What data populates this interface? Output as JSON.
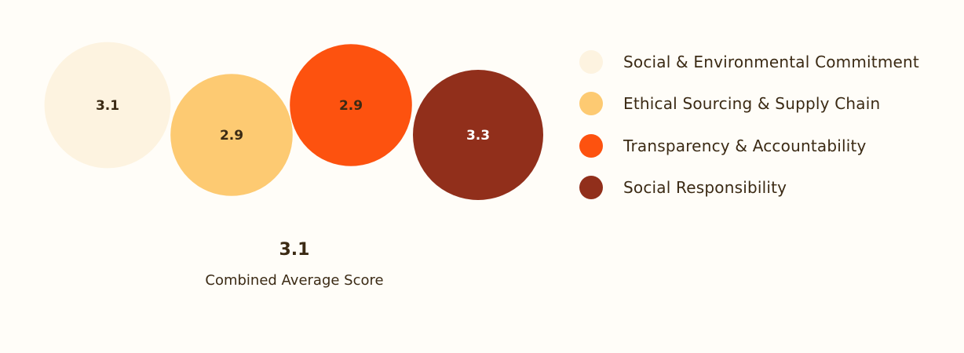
{
  "chart_data": {
    "type": "bubble",
    "title": "",
    "series": [
      {
        "name": "Social & Environmental Commitment",
        "value": 3.1,
        "color": "#fdf3e0",
        "label_color": "#3b2a14"
      },
      {
        "name": "Ethical Sourcing & Supply Chain",
        "value": 2.9,
        "color": "#fdca72",
        "label_color": "#3b2a14"
      },
      {
        "name": "Transparency & Accountability",
        "value": 2.9,
        "color": "#fd520f",
        "label_color": "#3b2a14"
      },
      {
        "name": "Social Responsibility",
        "value": 3.3,
        "color": "#912f1b",
        "label_color": "#ffffff"
      }
    ],
    "legend_position": "right"
  },
  "summary": {
    "value": "3.1",
    "label": "Combined Average Score"
  }
}
